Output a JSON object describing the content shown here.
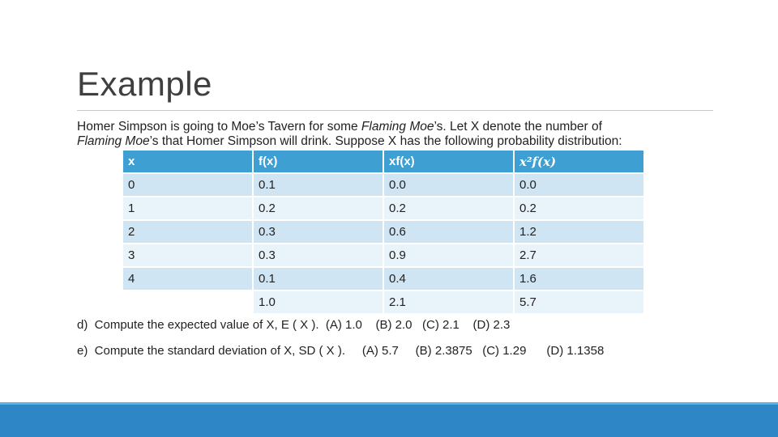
{
  "slide": {
    "title": "Example",
    "intro_part1": "Homer Simpson is going to Moe’s Tavern for some ",
    "intro_italic1": "Flaming Moe",
    "intro_part2": "’s. Let X denote the number of ",
    "intro_italic2": "Flaming Moe",
    "intro_part3": "’s that Homer Simpson will drink. Suppose X has the following probability distribution:"
  },
  "table": {
    "headers": [
      "x",
      "f(x)",
      "xf(x)",
      "x²f(x)"
    ],
    "rows": [
      [
        "0",
        "0.1",
        "0.0",
        "0.0"
      ],
      [
        "1",
        "0.2",
        "0.2",
        "0.2"
      ],
      [
        "2",
        "0.3",
        "0.6",
        "1.2"
      ],
      [
        "3",
        "0.3",
        "0.9",
        "2.7"
      ],
      [
        "4",
        "0.1",
        "0.4",
        "1.6"
      ]
    ],
    "totals": [
      "",
      "1.0",
      "2.1",
      "5.7"
    ]
  },
  "questions": {
    "d": "d)  Compute the expected value of X, E ( X ).  (A) 1.0    (B) 2.0   (C) 2.1    (D) 2.3",
    "e": "e)  Compute the standard deviation of X, SD ( X ).     (A) 5.7     (B) 2.3875   (C) 1.29      (D) 1.1358"
  },
  "colors": {
    "header": "#3e9fd3",
    "row_dark": "#cfe5f3",
    "row_light": "#e9f3fa",
    "footer": "#2e86c7"
  }
}
